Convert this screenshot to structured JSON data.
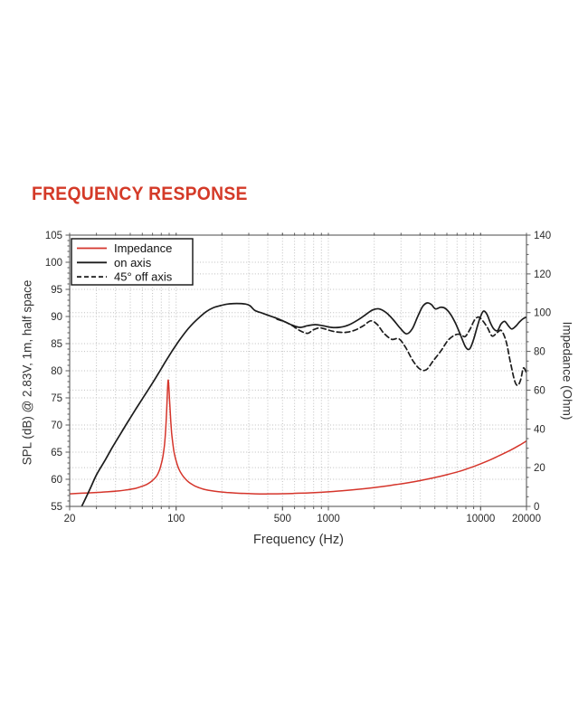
{
  "page": {
    "title": "FREQUENCY RESPONSE",
    "title_color": "#d43a28",
    "background": "#ffffff"
  },
  "chart_data": {
    "type": "line",
    "title": "FREQUENCY RESPONSE",
    "x_axis": {
      "label": "Frequency (Hz)",
      "scale": "log",
      "min": 20,
      "max": 20000,
      "tick_labels": [
        20,
        100,
        500,
        1000,
        10000,
        20000
      ],
      "gridlines": [
        30,
        40,
        50,
        60,
        70,
        80,
        90,
        100,
        200,
        300,
        400,
        500,
        600,
        700,
        800,
        900,
        1000,
        2000,
        3000,
        4000,
        5000,
        6000,
        7000,
        8000,
        9000,
        10000
      ]
    },
    "y_axis_left": {
      "label": "SPL (dB) @ 2.83V, 1m, half space",
      "min": 55,
      "max": 105,
      "tick_labels": [
        55,
        60,
        65,
        70,
        75,
        80,
        85,
        90,
        95,
        100,
        105
      ],
      "major_step": 5,
      "minor_step": 1,
      "grid": true
    },
    "y_axis_right": {
      "label": "Impedance (Ohm)",
      "min": 0,
      "max": 140,
      "tick_labels": [
        0,
        20,
        40,
        60,
        80,
        100,
        120,
        140
      ],
      "major_step": 20,
      "minor_step": 5,
      "grid": true
    },
    "legend": {
      "position": "top-left",
      "entries": [
        "Impedance",
        "on axis",
        "45° off axis"
      ]
    },
    "grid_color": "#bfbfbf",
    "axis_color": "#5a5a5a",
    "tick_text_color": "#2b2b2b",
    "series": [
      {
        "name": "Impedance",
        "axis": "right",
        "unit": "Ohm",
        "color": "#d5352b",
        "style": "solid",
        "points": [
          [
            20,
            6.5
          ],
          [
            24,
            6.8
          ],
          [
            29,
            7.1
          ],
          [
            35,
            7.5
          ],
          [
            42,
            8.0
          ],
          [
            48,
            8.6
          ],
          [
            54,
            9.3
          ],
          [
            59,
            10.2
          ],
          [
            64,
            11.3
          ],
          [
            68,
            12.6
          ],
          [
            72,
            14.3
          ],
          [
            75,
            16.0
          ],
          [
            78,
            19.0
          ],
          [
            80,
            22.0
          ],
          [
            82,
            26.0
          ],
          [
            84,
            32.0
          ],
          [
            85.5,
            40.0
          ],
          [
            86.8,
            50.0
          ],
          [
            87.6,
            58.0
          ],
          [
            88.2,
            63.0
          ],
          [
            88.8,
            65.2
          ],
          [
            89.6,
            62.0
          ],
          [
            90.6,
            55.0
          ],
          [
            92,
            45.5
          ],
          [
            93.5,
            38.0
          ],
          [
            95,
            33.0
          ],
          [
            97,
            28.0
          ],
          [
            100,
            23.5
          ],
          [
            104,
            19.5
          ],
          [
            109,
            16.5
          ],
          [
            115,
            14.2
          ],
          [
            122,
            12.3
          ],
          [
            131,
            10.8
          ],
          [
            142,
            9.6
          ],
          [
            155,
            8.7
          ],
          [
            170,
            8.1
          ],
          [
            190,
            7.6
          ],
          [
            215,
            7.2
          ],
          [
            245,
            6.9
          ],
          [
            280,
            6.7
          ],
          [
            330,
            6.5
          ],
          [
            390,
            6.45
          ],
          [
            460,
            6.5
          ],
          [
            540,
            6.6
          ],
          [
            640,
            6.8
          ],
          [
            760,
            7.0
          ],
          [
            900,
            7.3
          ],
          [
            1080,
            7.7
          ],
          [
            1300,
            8.2
          ],
          [
            1560,
            8.8
          ],
          [
            1900,
            9.5
          ],
          [
            2300,
            10.3
          ],
          [
            2800,
            11.3
          ],
          [
            3400,
            12.3
          ],
          [
            4100,
            13.5
          ],
          [
            5000,
            14.9
          ],
          [
            6100,
            16.5
          ],
          [
            7400,
            18.3
          ],
          [
            9000,
            20.6
          ],
          [
            11000,
            23.3
          ],
          [
            13000,
            25.9
          ],
          [
            15500,
            28.8
          ],
          [
            18000,
            31.6
          ],
          [
            20000,
            33.8
          ]
        ]
      },
      {
        "name": "on axis",
        "axis": "left",
        "unit": "dB",
        "color": "#1c1c1c",
        "style": "solid",
        "points": [
          [
            24,
            55
          ],
          [
            27,
            58
          ],
          [
            30,
            60.8
          ],
          [
            34,
            63.4
          ],
          [
            38,
            65.8
          ],
          [
            43,
            68.3
          ],
          [
            48,
            70.5
          ],
          [
            54,
            72.8
          ],
          [
            60,
            74.8
          ],
          [
            67,
            76.9
          ],
          [
            75,
            79.1
          ],
          [
            84,
            81.4
          ],
          [
            94,
            83.6
          ],
          [
            105,
            85.6
          ],
          [
            118,
            87.5
          ],
          [
            130,
            88.8
          ],
          [
            143,
            89.9
          ],
          [
            158,
            90.9
          ],
          [
            175,
            91.6
          ],
          [
            195,
            92.0
          ],
          [
            220,
            92.3
          ],
          [
            250,
            92.4
          ],
          [
            285,
            92.3
          ],
          [
            305,
            92.0
          ],
          [
            330,
            91.1
          ],
          [
            370,
            90.6
          ],
          [
            415,
            90.1
          ],
          [
            465,
            89.6
          ],
          [
            520,
            89.0
          ],
          [
            580,
            88.4
          ],
          [
            650,
            88.0
          ],
          [
            730,
            88.3
          ],
          [
            820,
            88.5
          ],
          [
            920,
            88.3
          ],
          [
            1040,
            88.0
          ],
          [
            1180,
            88.0
          ],
          [
            1350,
            88.4
          ],
          [
            1550,
            89.3
          ],
          [
            1750,
            90.3
          ],
          [
            1950,
            91.2
          ],
          [
            2150,
            91.4
          ],
          [
            2400,
            90.7
          ],
          [
            2650,
            89.5
          ],
          [
            2950,
            87.9
          ],
          [
            3250,
            86.8
          ],
          [
            3550,
            87.7
          ],
          [
            3850,
            89.9
          ],
          [
            4150,
            91.8
          ],
          [
            4450,
            92.5
          ],
          [
            4750,
            92.2
          ],
          [
            5050,
            91.4
          ],
          [
            5450,
            91.7
          ],
          [
            5850,
            91.5
          ],
          [
            6350,
            90.4
          ],
          [
            6850,
            88.7
          ],
          [
            7350,
            86.7
          ],
          [
            7950,
            84.4
          ],
          [
            8450,
            84.0
          ],
          [
            8950,
            85.6
          ],
          [
            9450,
            87.9
          ],
          [
            9950,
            89.9
          ],
          [
            10450,
            91.0
          ],
          [
            11000,
            90.4
          ],
          [
            11600,
            88.8
          ],
          [
            12200,
            87.7
          ],
          [
            12900,
            87.4
          ],
          [
            13600,
            88.6
          ],
          [
            14400,
            89.1
          ],
          [
            15200,
            88.3
          ],
          [
            16000,
            87.7
          ],
          [
            17000,
            88.2
          ],
          [
            18000,
            89.0
          ],
          [
            19000,
            89.6
          ],
          [
            20000,
            89.9
          ]
        ]
      },
      {
        "name": "45° off axis",
        "axis": "left",
        "unit": "dB",
        "color": "#1c1c1c",
        "style": "dashed",
        "points": [
          [
            460,
            89.5
          ],
          [
            520,
            89.0
          ],
          [
            580,
            88.3
          ],
          [
            650,
            87.4
          ],
          [
            730,
            86.9
          ],
          [
            790,
            87.5
          ],
          [
            870,
            87.9
          ],
          [
            950,
            87.7
          ],
          [
            1060,
            87.3
          ],
          [
            1180,
            87.1
          ],
          [
            1320,
            87.1
          ],
          [
            1500,
            87.5
          ],
          [
            1700,
            88.3
          ],
          [
            1900,
            89.2
          ],
          [
            2100,
            88.5
          ],
          [
            2300,
            87.0
          ],
          [
            2600,
            85.8
          ],
          [
            2900,
            85.9
          ],
          [
            3200,
            84.4
          ],
          [
            3600,
            81.8
          ],
          [
            4000,
            80.3
          ],
          [
            4400,
            80.2
          ],
          [
            4900,
            81.9
          ],
          [
            5500,
            83.7
          ],
          [
            6100,
            85.6
          ],
          [
            6800,
            86.6
          ],
          [
            7400,
            86.7
          ],
          [
            7900,
            86.3
          ],
          [
            8500,
            87.6
          ],
          [
            9100,
            89.3
          ],
          [
            9700,
            89.9
          ],
          [
            10400,
            89.1
          ],
          [
            11100,
            87.9
          ],
          [
            11900,
            86.4
          ],
          [
            12800,
            87.0
          ],
          [
            13700,
            87.4
          ],
          [
            14700,
            85.4
          ],
          [
            15700,
            81.5
          ],
          [
            16700,
            78.2
          ],
          [
            17500,
            77.3
          ],
          [
            18300,
            78.3
          ],
          [
            19100,
            80.5
          ],
          [
            20000,
            79.6
          ]
        ]
      }
    ]
  }
}
